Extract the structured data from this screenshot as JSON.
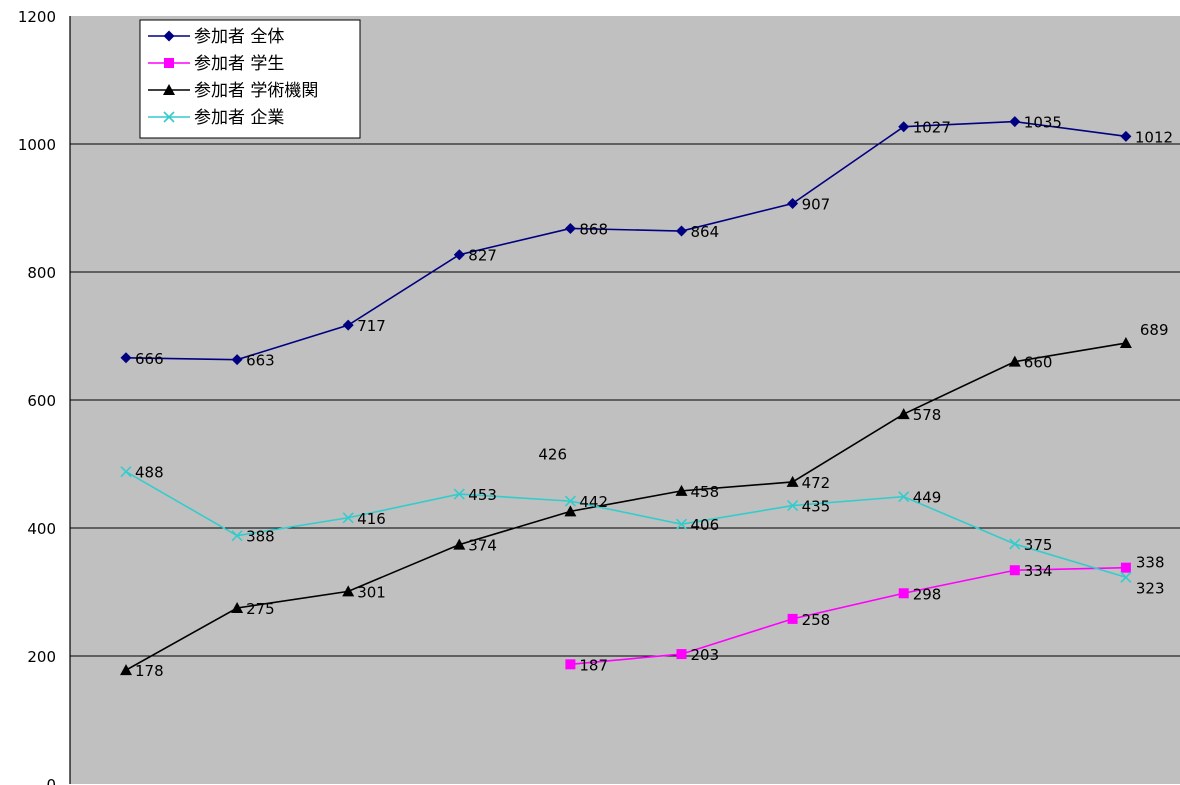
{
  "chart_data": {
    "type": "line",
    "ylim": [
      0,
      1200
    ],
    "yticks": [
      0,
      200,
      400,
      600,
      800,
      1000,
      1200
    ],
    "grid": true,
    "legend_position": "top-left",
    "background_color": "#c0c0c0",
    "x": [
      1,
      2,
      3,
      4,
      5,
      6,
      7,
      8,
      9,
      10
    ],
    "series": [
      {
        "name": "参加者 全体",
        "color": "#000080",
        "marker": "diamond",
        "values": [
          666,
          663,
          717,
          827,
          868,
          864,
          907,
          1027,
          1035,
          1012
        ],
        "labels": [
          "666",
          "663",
          "717",
          "827",
          "868",
          "864",
          "907",
          "1027",
          "1035",
          "1012"
        ]
      },
      {
        "name": "参加者 学生",
        "color": "#ff00ff",
        "marker": "square",
        "values": [
          null,
          null,
          null,
          null,
          187,
          203,
          258,
          298,
          334,
          338
        ],
        "labels": [
          "",
          "",
          "",
          "",
          "187",
          "203",
          "258",
          "298",
          "334",
          "338"
        ]
      },
      {
        "name": "参加者 学術機関",
        "color": "#000000",
        "marker": "triangle",
        "values": [
          178,
          275,
          301,
          374,
          426,
          458,
          472,
          578,
          660,
          689
        ],
        "labels": [
          "178",
          "275",
          "301",
          "374",
          "426",
          "458",
          "472",
          "578",
          "660",
          "689"
        ]
      },
      {
        "name": "参加者 企業",
        "color": "#33cccc",
        "marker": "x",
        "values": [
          488,
          388,
          416,
          453,
          442,
          406,
          435,
          449,
          375,
          323
        ],
        "labels": [
          "488",
          "388",
          "416",
          "453",
          "442",
          "406",
          "435",
          "449",
          "375",
          "323"
        ]
      }
    ]
  }
}
